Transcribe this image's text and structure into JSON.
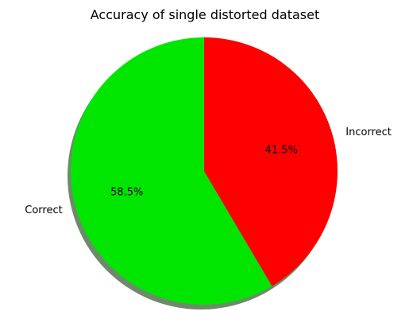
{
  "chart_data": {
    "type": "pie",
    "title": "Accuracy of single distorted dataset",
    "slices": [
      {
        "label": "Correct",
        "value": 58.5,
        "pct_label": "58.5%",
        "color": "#00e600"
      },
      {
        "label": "Incorrect",
        "value": 41.5,
        "pct_label": "41.5%",
        "color": "#ff0000"
      }
    ],
    "start_angle_deg": 90,
    "direction": "counterclockwise",
    "shadow": true,
    "shadow_color": "#6e8a6a"
  }
}
